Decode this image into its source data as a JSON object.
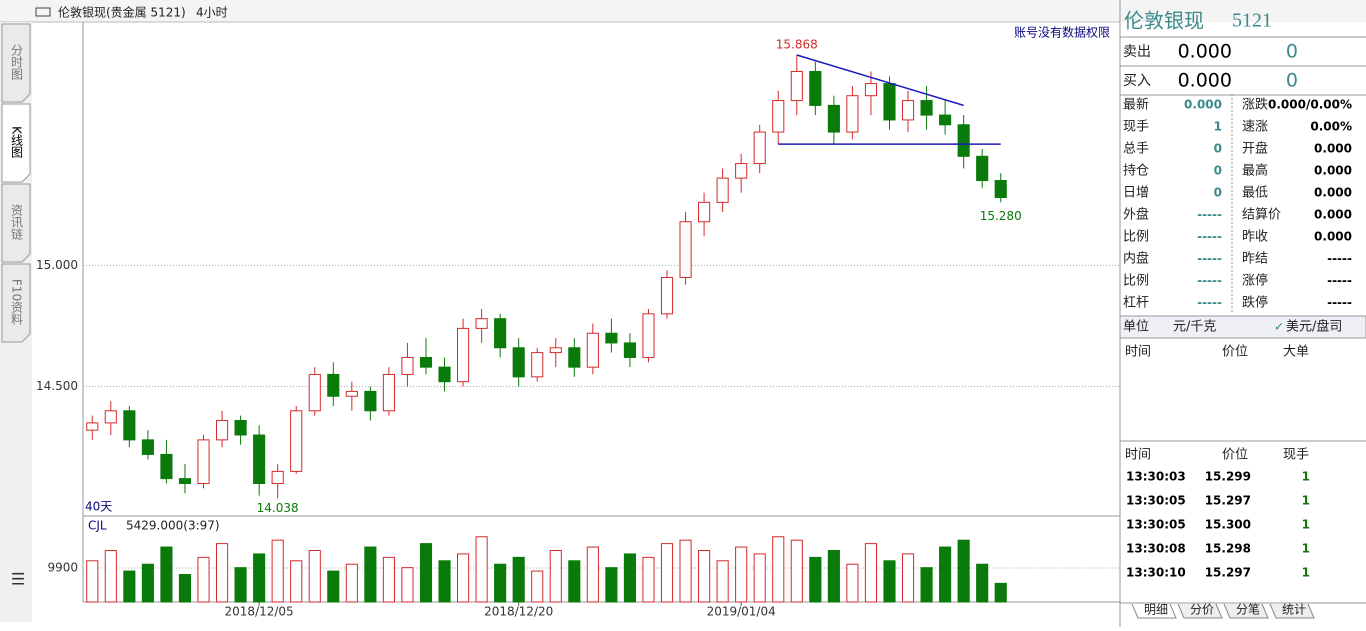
{
  "toolbar": {
    "symbol": "伦敦银现(贵金属 5121)",
    "period": "4小时"
  },
  "side_tabs": [
    "分时图",
    "K线图",
    "资讯链",
    "F10资料"
  ],
  "notice": "账号没有数据权限",
  "span_label": "40天",
  "chart_data": {
    "type": "candlestick",
    "up_color": "#d42a2a",
    "down_color": "#0a7a0a",
    "ylim": [
      13.97,
      16.0
    ],
    "yticks": [
      {
        "value": 15,
        "label": "15.000"
      },
      {
        "value": 14.5,
        "label": "14.500"
      }
    ],
    "categories": [
      null,
      null,
      null,
      null,
      null,
      null,
      null,
      null,
      null,
      "2018/12/05",
      null,
      null,
      null,
      null,
      null,
      null,
      null,
      null,
      null,
      null,
      null,
      null,
      null,
      "2018/12/20",
      null,
      null,
      null,
      null,
      null,
      null,
      null,
      null,
      null,
      null,
      null,
      "2019/01/04",
      null,
      null,
      null,
      null,
      null,
      null,
      null,
      null,
      null,
      null,
      null,
      null,
      null,
      null
    ],
    "ohlc": [
      [
        14.32,
        14.38,
        14.28,
        14.35
      ],
      [
        14.35,
        14.44,
        14.3,
        14.4
      ],
      [
        14.4,
        14.42,
        14.25,
        14.28
      ],
      [
        14.28,
        14.32,
        14.2,
        14.22
      ],
      [
        14.22,
        14.28,
        14.1,
        14.12
      ],
      [
        14.12,
        14.18,
        14.06,
        14.1
      ],
      [
        14.1,
        14.3,
        14.08,
        14.28
      ],
      [
        14.28,
        14.4,
        14.25,
        14.36
      ],
      [
        14.36,
        14.38,
        14.26,
        14.3
      ],
      [
        14.3,
        14.34,
        14.05,
        14.1
      ],
      [
        14.1,
        14.18,
        14.038,
        14.15
      ],
      [
        14.15,
        14.42,
        14.14,
        14.4
      ],
      [
        14.4,
        14.58,
        14.38,
        14.55
      ],
      [
        14.55,
        14.6,
        14.42,
        14.46
      ],
      [
        14.46,
        14.52,
        14.4,
        14.48
      ],
      [
        14.48,
        14.5,
        14.36,
        14.4
      ],
      [
        14.4,
        14.58,
        14.38,
        14.55
      ],
      [
        14.55,
        14.68,
        14.5,
        14.62
      ],
      [
        14.62,
        14.7,
        14.55,
        14.58
      ],
      [
        14.58,
        14.62,
        14.48,
        14.52
      ],
      [
        14.52,
        14.78,
        14.5,
        14.74
      ],
      [
        14.74,
        14.82,
        14.68,
        14.78
      ],
      [
        14.78,
        14.8,
        14.62,
        14.66
      ],
      [
        14.66,
        14.7,
        14.5,
        14.54
      ],
      [
        14.54,
        14.66,
        14.52,
        14.64
      ],
      [
        14.64,
        14.7,
        14.58,
        14.66
      ],
      [
        14.66,
        14.7,
        14.54,
        14.58
      ],
      [
        14.58,
        14.76,
        14.55,
        14.72
      ],
      [
        14.72,
        14.78,
        14.64,
        14.68
      ],
      [
        14.68,
        14.72,
        14.58,
        14.62
      ],
      [
        14.62,
        14.82,
        14.6,
        14.8
      ],
      [
        14.8,
        14.98,
        14.78,
        14.95
      ],
      [
        14.95,
        15.22,
        14.92,
        15.18
      ],
      [
        15.18,
        15.3,
        15.12,
        15.26
      ],
      [
        15.26,
        15.4,
        15.22,
        15.36
      ],
      [
        15.36,
        15.46,
        15.3,
        15.42
      ],
      [
        15.42,
        15.58,
        15.38,
        15.55
      ],
      [
        15.55,
        15.72,
        15.5,
        15.68
      ],
      [
        15.68,
        15.868,
        15.62,
        15.8
      ],
      [
        15.8,
        15.84,
        15.62,
        15.66
      ],
      [
        15.66,
        15.7,
        15.5,
        15.55
      ],
      [
        15.55,
        15.74,
        15.52,
        15.7
      ],
      [
        15.7,
        15.8,
        15.62,
        15.75
      ],
      [
        15.75,
        15.78,
        15.56,
        15.6
      ],
      [
        15.6,
        15.72,
        15.55,
        15.68
      ],
      [
        15.68,
        15.74,
        15.56,
        15.62
      ],
      [
        15.62,
        15.68,
        15.54,
        15.58
      ],
      [
        15.58,
        15.62,
        15.4,
        15.45
      ],
      [
        15.45,
        15.48,
        15.32,
        15.35
      ],
      [
        15.35,
        15.38,
        15.26,
        15.28
      ]
    ],
    "resistance": [
      15.868,
      15.66
    ],
    "support": 15.5,
    "line_color": "#1a1ab8",
    "annotations": {
      "high": "15.868",
      "low": "14.038",
      "last": "15.280"
    },
    "volume": {
      "label": "CJL",
      "reading": "5429.000(3:97)",
      "ylim": [
        0,
        24750
      ],
      "yticks": [
        9900
      ],
      "values": [
        12000,
        15000,
        9000,
        11000,
        16000,
        8000,
        13000,
        17000,
        10000,
        14000,
        18000,
        12000,
        15000,
        9000,
        11000,
        16000,
        13000,
        10000,
        17000,
        12000,
        14000,
        19000,
        11000,
        13000,
        9000,
        15000,
        12000,
        16000,
        10000,
        14000,
        13000,
        17000,
        18000,
        15000,
        12000,
        16000,
        14000,
        19000,
        18000,
        13000,
        15000,
        11000,
        17000,
        12000,
        14000,
        10000,
        16000,
        18000,
        11000,
        5429
      ]
    }
  },
  "panel": {
    "title": "伦敦银现",
    "code": "5121",
    "sell": [
      "卖出",
      "0.000",
      "0"
    ],
    "buy": [
      "买入",
      "0.000",
      "0"
    ],
    "left": [
      [
        "最新",
        "0.000"
      ],
      [
        "现手",
        "1"
      ],
      [
        "总手",
        "0"
      ],
      [
        "持仓",
        "0"
      ],
      [
        "日增",
        "0"
      ],
      [
        "外盘",
        "-----"
      ],
      [
        "比例",
        "-----"
      ],
      [
        "内盘",
        "-----"
      ],
      [
        "比例",
        "-----"
      ],
      [
        "杠杆",
        "-----"
      ]
    ],
    "right": [
      [
        "涨跌",
        "0.000/0.00%"
      ],
      [
        "速涨",
        "0.00%"
      ],
      [
        "开盘",
        "0.000"
      ],
      [
        "最高",
        "0.000"
      ],
      [
        "最低",
        "0.000"
      ],
      [
        "结算价",
        "0.000"
      ],
      [
        "昨收",
        "0.000"
      ],
      [
        "昨结",
        "-----"
      ],
      [
        "涨停",
        "-----"
      ],
      [
        "跌停",
        "-----"
      ]
    ],
    "unit": [
      "单位",
      "元/千克",
      "美元/盘司"
    ],
    "big_header": [
      "时间",
      "价位",
      "大单"
    ],
    "trade_header": [
      "时间",
      "价位",
      "现手"
    ],
    "trades": [
      [
        "13:30:03",
        "15.299",
        "1"
      ],
      [
        "13:30:05",
        "15.297",
        "1"
      ],
      [
        "13:30:05",
        "15.300",
        "1"
      ],
      [
        "13:30:08",
        "15.298",
        "1"
      ],
      [
        "13:30:10",
        "15.297",
        "1"
      ]
    ],
    "tabs": [
      "明细",
      "分价",
      "分笔",
      "统计"
    ]
  }
}
